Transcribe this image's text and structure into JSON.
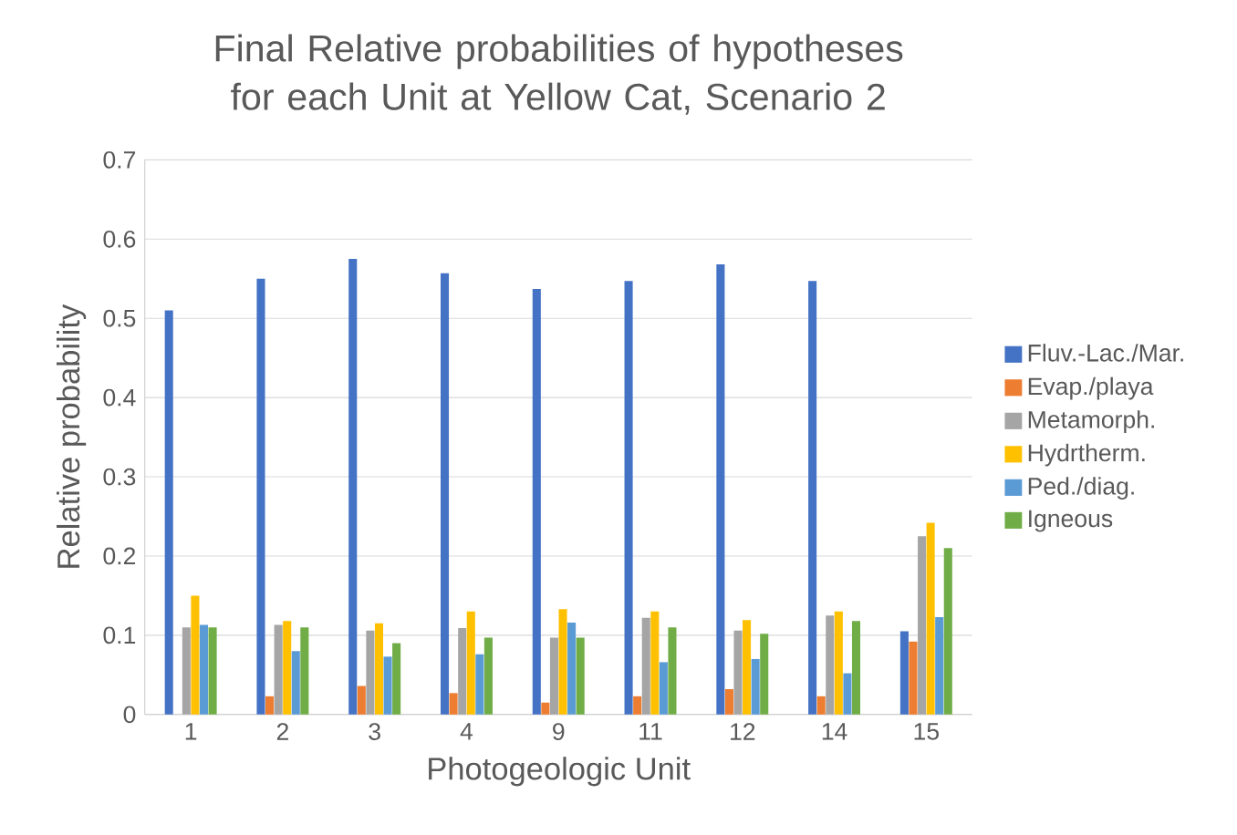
{
  "chart_data": {
    "type": "bar",
    "title": "Final Relative probabilities of hypotheses for each Unit at Yellow Cat, Scenario 2",
    "xlabel": "Photogeologic Unit",
    "ylabel": "Relative probability",
    "categories": [
      "1",
      "2",
      "3",
      "4",
      "9",
      "11",
      "12",
      "14",
      "15"
    ],
    "series": [
      {
        "name": "Fluv.-Lac./Mar.",
        "color": "#4472c4",
        "values": [
          0.51,
          0.55,
          0.575,
          0.557,
          0.537,
          0.547,
          0.568,
          0.547,
          0.105
        ]
      },
      {
        "name": "Evap./playa",
        "color": "#ed7d31",
        "values": [
          0,
          0.023,
          0.036,
          0.027,
          0.015,
          0.023,
          0.032,
          0.023,
          0.092
        ]
      },
      {
        "name": "Metamorph.",
        "color": "#a5a5a5",
        "values": [
          0.11,
          0.113,
          0.106,
          0.109,
          0.097,
          0.122,
          0.106,
          0.125,
          0.225
        ]
      },
      {
        "name": "Hydrtherm.",
        "color": "#ffc000",
        "values": [
          0.15,
          0.118,
          0.115,
          0.13,
          0.133,
          0.13,
          0.119,
          0.13,
          0.242
        ]
      },
      {
        "name": "Ped./diag.",
        "color": "#5b9bd5",
        "values": [
          0.113,
          0.08,
          0.073,
          0.076,
          0.116,
          0.066,
          0.07,
          0.052,
          0.123
        ]
      },
      {
        "name": "Igneous",
        "color": "#70ad47",
        "values": [
          0.11,
          0.11,
          0.09,
          0.097,
          0.097,
          0.11,
          0.102,
          0.118,
          0.21
        ]
      }
    ],
    "ylim": [
      0,
      0.7
    ],
    "yticks": [
      0,
      0.1,
      0.2,
      0.3,
      0.4,
      0.5,
      0.6,
      0.7
    ],
    "grid": "y",
    "legend": "right"
  }
}
